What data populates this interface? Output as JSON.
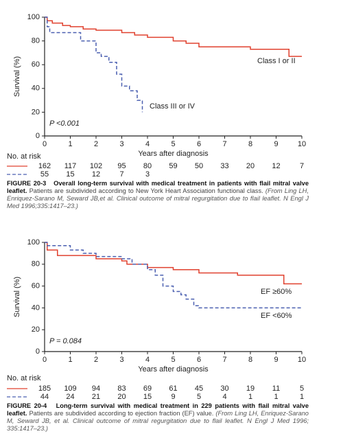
{
  "chart_data": [
    {
      "type": "line",
      "step": true,
      "y_label": "Survival (%)",
      "x_label": "Years after diagnosis",
      "xlim": [
        0,
        10
      ],
      "xticks": [
        0,
        1,
        2,
        3,
        4,
        5,
        6,
        7,
        8,
        9,
        10
      ],
      "ylim": [
        0,
        100
      ],
      "yticks": [
        0,
        20,
        40,
        60,
        80,
        100
      ],
      "annotation": "P <0.001",
      "series": [
        {
          "name": "Class I or II",
          "color": "#e0402e",
          "dashed": false,
          "x": [
            0,
            0.1,
            0.3,
            0.7,
            1.0,
            1.5,
            2.0,
            3.0,
            3.5,
            4.0,
            5.0,
            5.5,
            6.0,
            8.0,
            9.5,
            10
          ],
          "values": [
            100,
            97,
            95,
            93,
            92,
            90,
            89,
            87,
            85,
            83,
            80,
            78,
            75,
            73,
            67,
            67
          ]
        },
        {
          "name": "Class III or IV",
          "color": "#4a5fb0",
          "dashed": true,
          "x": [
            0,
            0.1,
            0.2,
            1.4,
            2.0,
            2.2,
            2.5,
            2.8,
            3.0,
            3.3,
            3.6,
            3.8
          ],
          "values": [
            100,
            92,
            87,
            80,
            70,
            67,
            62,
            52,
            42,
            38,
            30,
            20
          ]
        }
      ],
      "risk_table": {
        "title": "No. at risk",
        "rows": [
          [
            "162",
            "117",
            "102",
            "95",
            "80",
            "59",
            "50",
            "33",
            "20",
            "12",
            "7"
          ],
          [
            "55",
            "15",
            "12",
            "7",
            "3"
          ]
        ]
      },
      "caption": {
        "label": "FIGURE 20-3",
        "title": "Overall long-term survival with medical treatment in patients with flail mitral valve leaflet.",
        "text": "Patients are subdivided according to New York Heart Association functional class.",
        "citation": "(From Ling LH, Enriquez-Sarano M, Seward JB,et al. Clinical outcome of mitral regurgitation due to flail leaflet. N Engl J Med 1996;335:1417–23.)"
      }
    },
    {
      "type": "line",
      "step": true,
      "y_label": "Survival (%)",
      "x_label": "Years after diagnosis",
      "xlim": [
        0,
        10
      ],
      "xticks": [
        0,
        1,
        2,
        3,
        4,
        5,
        6,
        7,
        8,
        9,
        10
      ],
      "ylim": [
        0,
        100
      ],
      "yticks": [
        0,
        20,
        40,
        60,
        80,
        100
      ],
      "annotation": "P = 0.084",
      "series": [
        {
          "name": "EF ≥60%",
          "color": "#e0402e",
          "dashed": false,
          "x": [
            0,
            0.1,
            0.5,
            2.0,
            3.0,
            3.2,
            4.0,
            5.0,
            6.0,
            7.5,
            9.3,
            10
          ],
          "values": [
            100,
            93,
            88,
            85,
            83,
            80,
            77,
            75,
            72,
            70,
            62,
            62
          ]
        },
        {
          "name": "EF <60%",
          "color": "#4a5fb0",
          "dashed": true,
          "x": [
            0,
            0.1,
            1.0,
            1.5,
            2.0,
            3.0,
            3.4,
            4.0,
            4.3,
            4.6,
            5.0,
            5.3,
            5.5,
            5.8,
            6.0,
            10
          ],
          "values": [
            100,
            97,
            93,
            90,
            87,
            85,
            80,
            75,
            70,
            60,
            55,
            52,
            48,
            42,
            40,
            40
          ]
        }
      ],
      "risk_table": {
        "title": "No. at risk",
        "rows": [
          [
            "185",
            "109",
            "94",
            "83",
            "69",
            "61",
            "45",
            "30",
            "19",
            "11",
            "5"
          ],
          [
            "44",
            "24",
            "21",
            "20",
            "15",
            "9",
            "5",
            "4",
            "1",
            "1",
            "1"
          ]
        ]
      },
      "caption": {
        "label": "FIGURE 20-4",
        "title": "Long-term survival with medical treatment in 229 patients with flail mitral valve leaflet.",
        "text": "Patients are subdivided according to ejection fraction (EF) value.",
        "citation": "(From Ling LH, Enriquez-Sarano M, Seward JB, et al. Clinical outcome of mitral regurgitation due to flail leaflet. N Engl J Med 1996; 335:1417–23.)"
      }
    }
  ]
}
